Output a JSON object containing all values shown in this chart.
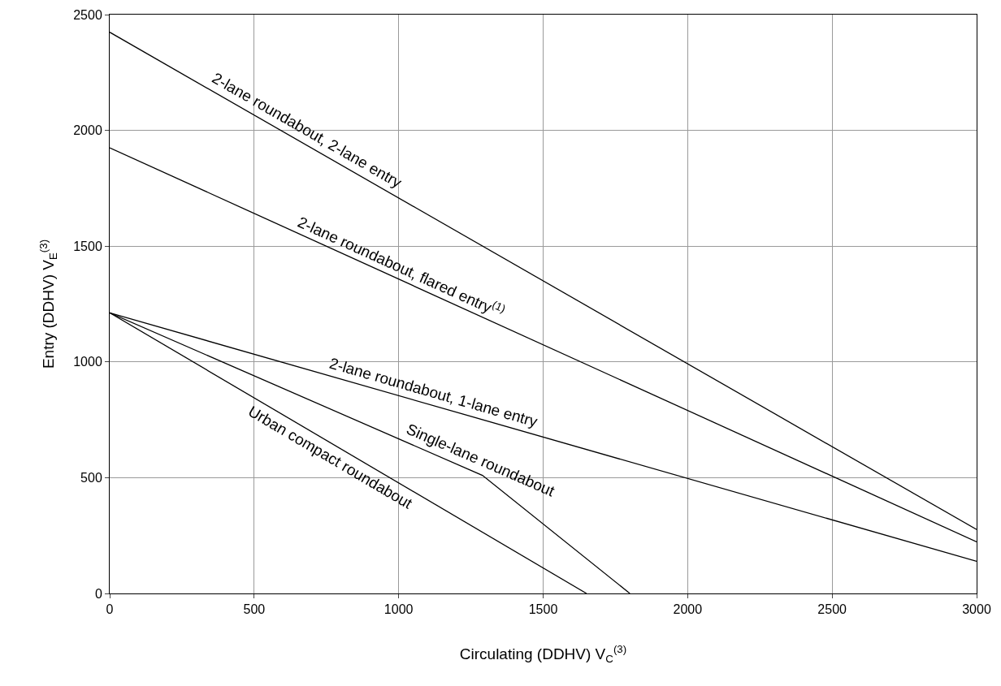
{
  "chart_data": {
    "type": "line",
    "xlabel": "Circulating (DDHV) V$_{C}$$^{(3)}$",
    "ylabel": "Entry (DDHV) V$_{E}$$^{(3)}$",
    "series": [
      {
        "color": "#000000",
        "x": [
          0,
          3000
        ],
        "values": [
          2424,
          276
        ]
      },
      {
        "color": "#000000",
        "x": [
          0,
          3000
        ],
        "values": [
          1925,
          223
        ]
      },
      {
        "color": "#000000",
        "x": [
          0,
          3000
        ],
        "values": [
          1212,
          139
        ]
      },
      {
        "color": "#000000",
        "x": [
          0,
          1290,
          1800
        ],
        "values": [
          1212,
          510,
          0
        ]
      },
      {
        "color": "#000000",
        "x": [
          0,
          1650
        ],
        "values": [
          1212,
          0
        ]
      }
    ],
    "annotations": [
      {
        "text": "2-lane roundabout, 2-lane entry",
        "x": 661,
        "y": 1951
      },
      {
        "text": "2-lane roundabout, flared entry$^{(1)}$",
        "x": 990,
        "y": 1363
      },
      {
        "text": "2-lane roundabout, 1-lane entry",
        "x": 1110,
        "y": 815
      },
      {
        "text": "Single-lane roundabout",
        "x": 1265,
        "y": 524
      },
      {
        "text": "Urban compact roundabout",
        "x": 787,
        "y": 634
      }
    ],
    "xlim": [
      0,
      3000
    ],
    "xticks": [
      0,
      500,
      1000,
      1500,
      2000,
      2500,
      3000
    ],
    "ylim": [
      0,
      2500
    ],
    "yticks": [
      0,
      500,
      1000,
      1500,
      2000,
      2500
    ],
    "grid": true,
    "marker": "none",
    "line_style": "solid"
  }
}
